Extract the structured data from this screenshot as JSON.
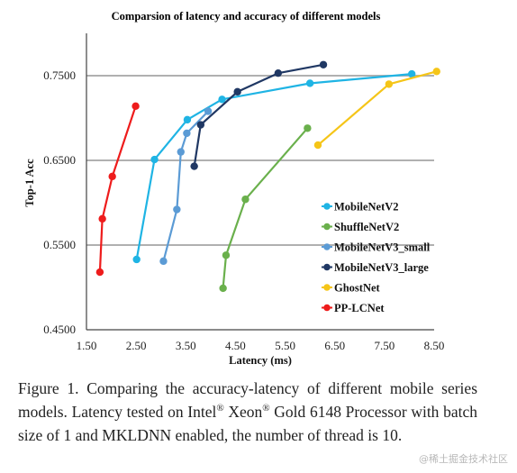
{
  "chart_data": {
    "type": "line",
    "title": "Comparsion of latency and accuracy of different models",
    "xlabel": "Latency (ms)",
    "ylabel": "Top-1 Acc",
    "xlim": [
      1.5,
      8.5
    ],
    "ylim": [
      0.45,
      0.8
    ],
    "x_ticks": [
      1.5,
      2.5,
      3.5,
      4.5,
      5.5,
      6.5,
      7.5,
      8.5
    ],
    "x_tick_labels": [
      "1.50",
      "2.50",
      "3.50",
      "4.50",
      "5.50",
      "6.50",
      "7.50",
      "8.50"
    ],
    "y_ticks": [
      0.45,
      0.55,
      0.65,
      0.75
    ],
    "y_tick_labels": [
      "0.4500",
      "0.5500",
      "0.6500",
      "0.7500"
    ],
    "grid": "horizontal",
    "legend_position": "right",
    "series": [
      {
        "name": "MobileNetV2",
        "color": "#1fb4e4",
        "points": [
          [
            2.51,
            0.533
          ],
          [
            2.87,
            0.651
          ],
          [
            3.53,
            0.698
          ],
          [
            4.23,
            0.722
          ],
          [
            6.0,
            0.741
          ],
          [
            8.05,
            0.752
          ]
        ]
      },
      {
        "name": "ShuffleNetV2",
        "color": "#6ab04c",
        "points": [
          [
            4.25,
            0.499
          ],
          [
            4.31,
            0.538
          ],
          [
            4.7,
            0.604
          ],
          [
            5.95,
            0.688
          ]
        ]
      },
      {
        "name": "MobileNetV3_small",
        "color": "#5b9bd5",
        "points": [
          [
            3.05,
            0.531
          ],
          [
            3.32,
            0.592
          ],
          [
            3.4,
            0.66
          ],
          [
            3.52,
            0.682
          ],
          [
            3.95,
            0.708
          ]
        ]
      },
      {
        "name": "MobileNetV3_large",
        "color": "#203864",
        "points": [
          [
            3.67,
            0.643
          ],
          [
            3.8,
            0.692
          ],
          [
            4.54,
            0.731
          ],
          [
            5.36,
            0.753
          ],
          [
            6.27,
            0.763
          ]
        ]
      },
      {
        "name": "GhostNet",
        "color": "#f5c518",
        "points": [
          [
            6.16,
            0.668
          ],
          [
            7.59,
            0.74
          ],
          [
            8.55,
            0.755
          ]
        ]
      },
      {
        "name": "PP-LCNet",
        "color": "#ee1c1c",
        "points": [
          [
            1.77,
            0.518
          ],
          [
            1.82,
            0.581
          ],
          [
            2.02,
            0.631
          ],
          [
            2.49,
            0.714
          ]
        ]
      }
    ]
  },
  "caption": {
    "part1": "Figure 1. Comparing the accuracy-latency of different mobile series models. Latency tested on Intel",
    "reg1": "®",
    "part2": " Xeon",
    "reg2": "®",
    "part3": " Gold 6148 Processor with batch size of 1 and MKLDNN enabled, the number of thread is 10."
  },
  "watermark": "@稀土掘金技术社区"
}
